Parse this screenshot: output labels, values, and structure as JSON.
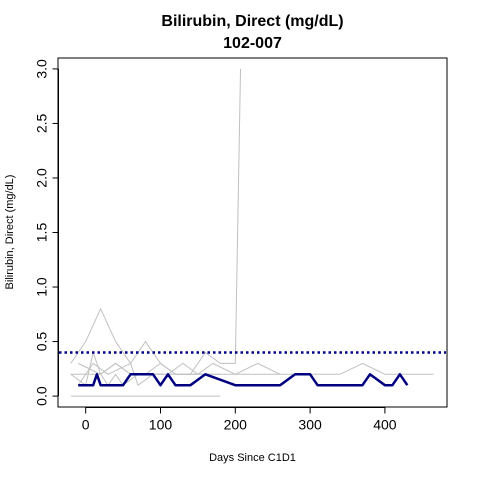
{
  "chart_data": {
    "type": "line",
    "title": "Bilirubin, Direct (mg/dL)",
    "subtitle": "102-007",
    "xlabel": "Days Since C1D1",
    "ylabel": "Bilirubin, Direct (mg/dL)",
    "xlim": [
      -37,
      483
    ],
    "ylim": [
      -0.1,
      3.1
    ],
    "x_ticks": [
      0,
      100,
      200,
      300,
      400
    ],
    "x_tick_labels": [
      "0",
      "100",
      "200",
      "300",
      "400"
    ],
    "y_ticks": [
      0.0,
      0.5,
      1.0,
      1.5,
      2.0,
      2.5,
      3.0
    ],
    "y_tick_labels": [
      "0.0",
      "0.5",
      "1.0",
      "1.5",
      "2.0",
      "2.5",
      "3.0"
    ],
    "grid": false,
    "reference_line": {
      "y": 0.4
    },
    "highlight_series": {
      "x": [
        -10,
        0,
        10,
        15,
        20,
        30,
        50,
        60,
        80,
        90,
        100,
        110,
        120,
        140,
        160,
        200,
        220,
        240,
        260,
        280,
        300,
        310,
        340,
        360,
        370,
        380,
        400,
        410,
        420,
        430
      ],
      "y": [
        0.1,
        0.1,
        0.1,
        0.2,
        0.1,
        0.1,
        0.1,
        0.2,
        0.2,
        0.2,
        0.1,
        0.2,
        0.1,
        0.1,
        0.2,
        0.1,
        0.1,
        0.1,
        0.1,
        0.2,
        0.2,
        0.1,
        0.1,
        0.1,
        0.1,
        0.2,
        0.1,
        0.1,
        0.2,
        0.1
      ]
    },
    "background_series": [
      {
        "x": [
          -20,
          0,
          20,
          40,
          60,
          80,
          100,
          120,
          140,
          160,
          180,
          190,
          200,
          207
        ],
        "y": [
          0.3,
          0.5,
          0.8,
          0.5,
          0.3,
          0.5,
          0.3,
          0.2,
          0.2,
          0.4,
          0.3,
          0.3,
          0.3,
          3.0
        ]
      },
      {
        "x": [
          -10,
          0,
          10,
          30,
          60,
          70,
          90,
          110,
          130,
          150,
          170,
          200,
          230,
          260
        ],
        "y": [
          0.1,
          0.2,
          0.3,
          0.2,
          0.3,
          0.1,
          0.2,
          0.2,
          0.3,
          0.2,
          0.3,
          0.2,
          0.3,
          0.2
        ]
      },
      {
        "x": [
          -20,
          0,
          20,
          40,
          60,
          80,
          100,
          120,
          150,
          180,
          210,
          260,
          300,
          340,
          370,
          400,
          430,
          465
        ],
        "y": [
          0.2,
          0.2,
          0.2,
          0.3,
          0.2,
          0.2,
          0.2,
          0.2,
          0.2,
          0.2,
          0.2,
          0.2,
          0.2,
          0.2,
          0.3,
          0.2,
          0.2,
          0.2
        ]
      },
      {
        "x": [
          -20,
          0,
          25,
          50,
          80,
          100,
          125,
          150,
          180
        ],
        "y": [
          0.0,
          0.0,
          0.0,
          0.0,
          0.0,
          0.0,
          0.0,
          0.0,
          0.0
        ]
      },
      {
        "x": [
          -20,
          0,
          10,
          20,
          30,
          40,
          50,
          70,
          100
        ],
        "y": [
          0.2,
          0.1,
          0.4,
          0.2,
          0.1,
          0.2,
          0.1,
          0.2,
          0.2
        ]
      },
      {
        "x": [
          -10,
          20,
          40,
          60,
          80,
          100,
          120,
          150,
          160,
          180
        ],
        "y": [
          0.3,
          0.2,
          0.3,
          0.2,
          0.2,
          0.3,
          0.2,
          0.2,
          0.2,
          0.2
        ]
      }
    ],
    "colors": {
      "highlight": "#000080",
      "background": "#c0c0c0",
      "reference": "#00008b"
    }
  }
}
